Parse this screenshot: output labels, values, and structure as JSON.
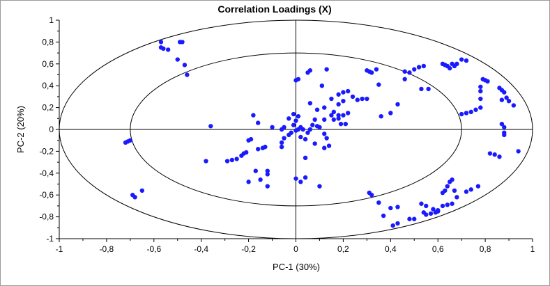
{
  "chart_data": {
    "type": "scatter",
    "title": "Correlation Loadings (X)",
    "xlabel": "PC-1 (30%)",
    "ylabel": "PC-2 (20%)",
    "xlim": [
      -1,
      1
    ],
    "ylim": [
      -1,
      1
    ],
    "x_ticks": [
      "-1",
      "-0,8",
      "-0,6",
      "-0,4",
      "-0,2",
      "0",
      "0,2",
      "0,4",
      "0,6",
      "0,8",
      "1"
    ],
    "y_ticks": [
      "1",
      "0,8",
      "0,6",
      "0,4",
      "0,2",
      "0",
      "-0,2",
      "-0,4",
      "-0,6",
      "-0,8",
      "-1"
    ],
    "circles": [
      1.0,
      0.7
    ],
    "grid": false,
    "point_color": "#1a1aff",
    "points": [
      [
        -0.57,
        0.75
      ],
      [
        -0.56,
        0.74
      ],
      [
        -0.54,
        0.73
      ],
      [
        -0.49,
        0.8
      ],
      [
        -0.48,
        0.8
      ],
      [
        -0.5,
        0.64
      ],
      [
        -0.47,
        0.59
      ],
      [
        -0.46,
        0.5
      ],
      [
        -0.72,
        -0.12
      ],
      [
        -0.71,
        -0.11
      ],
      [
        -0.7,
        -0.1
      ],
      [
        -0.69,
        -0.6
      ],
      [
        -0.68,
        -0.62
      ],
      [
        -0.65,
        -0.56
      ],
      [
        -0.36,
        0.03
      ],
      [
        -0.38,
        -0.29
      ],
      [
        -0.29,
        -0.29
      ],
      [
        -0.27,
        -0.28
      ],
      [
        -0.25,
        -0.27
      ],
      [
        -0.23,
        -0.24
      ],
      [
        -0.22,
        -0.22
      ],
      [
        -0.21,
        -0.21
      ],
      [
        -0.2,
        -0.1
      ],
      [
        -0.19,
        -0.09
      ],
      [
        -0.16,
        -0.18
      ],
      [
        -0.14,
        -0.17
      ],
      [
        -0.13,
        -0.16
      ],
      [
        -0.17,
        -0.38
      ],
      [
        -0.15,
        -0.46
      ],
      [
        -0.2,
        -0.48
      ],
      [
        -0.12,
        -0.52
      ],
      [
        -0.12,
        -0.41
      ],
      [
        -0.12,
        -0.38
      ],
      [
        -0.06,
        -0.16
      ],
      [
        -0.06,
        -0.12
      ],
      [
        -0.05,
        -0.08
      ],
      [
        -0.03,
        -0.05
      ],
      [
        -0.02,
        -0.03
      ],
      [
        -0.01,
        0.04
      ],
      [
        0.0,
        0.08
      ],
      [
        0.01,
        0.12
      ],
      [
        -0.01,
        0.14
      ],
      [
        -0.03,
        0.1
      ],
      [
        -0.05,
        0.02
      ],
      [
        0.0,
        -0.01
      ],
      [
        0.01,
        0.0
      ],
      [
        0.02,
        0.02
      ],
      [
        0.03,
        0.0
      ],
      [
        0.05,
        -0.03
      ],
      [
        0.06,
        0.0
      ],
      [
        0.07,
        0.04
      ],
      [
        0.08,
        0.09
      ],
      [
        0.09,
        0.03
      ],
      [
        0.1,
        0.02
      ],
      [
        0.12,
        -0.04
      ],
      [
        0.13,
        -0.08
      ],
      [
        0.14,
        -0.15
      ],
      [
        0.12,
        -0.17
      ],
      [
        0.08,
        -0.13
      ],
      [
        0.04,
        -0.09
      ],
      [
        0.02,
        -0.07
      ],
      [
        0.0,
        -0.45
      ],
      [
        0.02,
        -0.48
      ],
      [
        0.04,
        -0.44
      ],
      [
        0.1,
        -0.52
      ],
      [
        0.04,
        -0.26
      ],
      [
        -0.1,
        0.02
      ],
      [
        -0.06,
        0.0
      ],
      [
        -0.57,
        0.8
      ],
      [
        -0.18,
        0.13
      ],
      [
        -0.16,
        0.06
      ],
      [
        0.0,
        0.45
      ],
      [
        0.01,
        0.46
      ],
      [
        0.06,
        0.24
      ],
      [
        0.09,
        0.18
      ],
      [
        0.12,
        0.2
      ],
      [
        0.15,
        0.28
      ],
      [
        0.18,
        0.23
      ],
      [
        0.2,
        0.26
      ],
      [
        0.22,
        0.15
      ],
      [
        0.24,
        0.3
      ],
      [
        0.26,
        0.27
      ],
      [
        0.28,
        0.28
      ],
      [
        0.3,
        0.28
      ],
      [
        0.16,
        0.16
      ],
      [
        0.18,
        0.13
      ],
      [
        0.2,
        0.13
      ],
      [
        0.18,
        0.1
      ],
      [
        0.12,
        0.09
      ],
      [
        0.11,
        0.4
      ],
      [
        0.18,
        0.32
      ],
      [
        0.2,
        0.34
      ],
      [
        0.22,
        0.35
      ],
      [
        0.13,
        0.55
      ],
      [
        0.06,
        0.54
      ],
      [
        0.05,
        0.52
      ],
      [
        0.15,
        0.13
      ],
      [
        0.19,
        0.05
      ],
      [
        0.21,
        0.05
      ],
      [
        0.16,
        0.09
      ],
      [
        0.3,
        0.54
      ],
      [
        0.31,
        0.53
      ],
      [
        0.32,
        0.52
      ],
      [
        0.34,
        0.55
      ],
      [
        0.35,
        0.41
      ],
      [
        0.36,
        0.12
      ],
      [
        0.4,
        0.15
      ],
      [
        0.43,
        0.23
      ],
      [
        0.46,
        0.53
      ],
      [
        0.48,
        0.52
      ],
      [
        0.5,
        0.55
      ],
      [
        0.52,
        0.57
      ],
      [
        0.54,
        0.58
      ],
      [
        0.46,
        0.46
      ],
      [
        0.53,
        0.37
      ],
      [
        0.56,
        0.37
      ],
      [
        0.62,
        0.6
      ],
      [
        0.63,
        0.59
      ],
      [
        0.64,
        0.58
      ],
      [
        0.65,
        0.56
      ],
      [
        0.66,
        0.6
      ],
      [
        0.67,
        0.58
      ],
      [
        0.68,
        0.6
      ],
      [
        0.7,
        0.64
      ],
      [
        0.72,
        0.63
      ],
      [
        0.7,
        0.14
      ],
      [
        0.72,
        0.15
      ],
      [
        0.74,
        0.16
      ],
      [
        0.76,
        0.18
      ],
      [
        0.78,
        0.2
      ],
      [
        0.78,
        0.28
      ],
      [
        0.78,
        0.35
      ],
      [
        0.78,
        0.39
      ],
      [
        0.79,
        0.46
      ],
      [
        0.8,
        0.45
      ],
      [
        0.81,
        0.44
      ],
      [
        0.86,
        0.38
      ],
      [
        0.87,
        0.36
      ],
      [
        0.88,
        0.34
      ],
      [
        0.89,
        0.29
      ],
      [
        0.9,
        0.26
      ],
      [
        0.92,
        0.22
      ],
      [
        0.87,
        0.27
      ],
      [
        0.87,
        0.05
      ],
      [
        0.88,
        0.02
      ],
      [
        0.88,
        -0.03
      ],
      [
        0.88,
        -0.05
      ],
      [
        0.94,
        -0.2
      ],
      [
        0.82,
        -0.22
      ],
      [
        0.84,
        -0.23
      ],
      [
        0.86,
        -0.25
      ],
      [
        0.31,
        -0.58
      ],
      [
        0.32,
        -0.6
      ],
      [
        0.35,
        -0.67
      ],
      [
        0.4,
        -0.72
      ],
      [
        0.43,
        -0.71
      ],
      [
        0.37,
        -0.79
      ],
      [
        0.41,
        -0.88
      ],
      [
        0.43,
        -0.86
      ],
      [
        0.48,
        -0.82
      ],
      [
        0.5,
        -0.82
      ],
      [
        0.54,
        -0.76
      ],
      [
        0.55,
        -0.78
      ],
      [
        0.57,
        -0.77
      ],
      [
        0.59,
        -0.76
      ],
      [
        0.6,
        -0.74
      ],
      [
        0.62,
        -0.58
      ],
      [
        0.63,
        -0.56
      ],
      [
        0.64,
        -0.52
      ],
      [
        0.65,
        -0.48
      ],
      [
        0.66,
        -0.46
      ],
      [
        0.67,
        -0.56
      ],
      [
        0.62,
        -0.7
      ],
      [
        0.64,
        -0.69
      ],
      [
        0.66,
        -0.68
      ],
      [
        0.68,
        -0.62
      ],
      [
        0.72,
        -0.57
      ],
      [
        0.74,
        -0.55
      ],
      [
        0.77,
        -0.52
      ],
      [
        0.53,
        -0.68
      ],
      [
        0.55,
        -0.7
      ],
      [
        0.58,
        -0.73
      ],
      [
        0.6,
        -0.75
      ]
    ]
  }
}
